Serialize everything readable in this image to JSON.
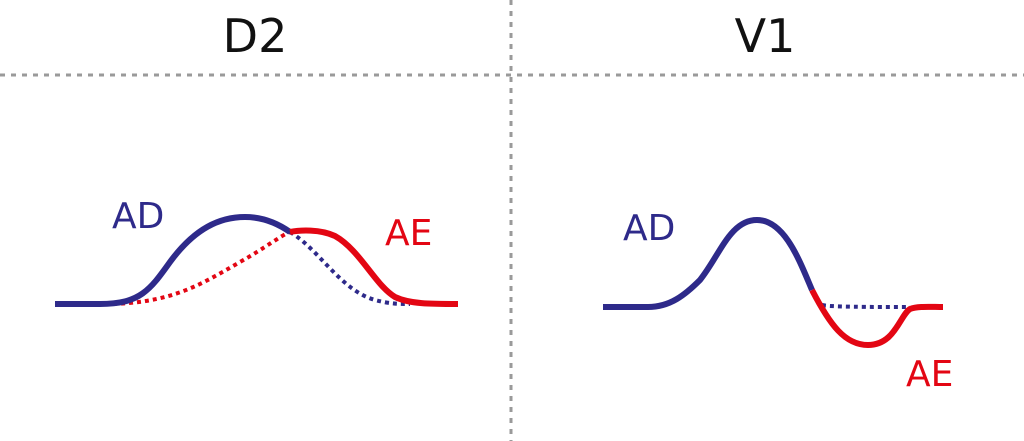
{
  "panels": [
    {
      "title": "D2",
      "label_right_atrium": "AD",
      "label_left_atrium": "AE"
    },
    {
      "title": "V1",
      "label_right_atrium": "AD",
      "label_left_atrium": "AE"
    }
  ],
  "colors": {
    "right_atrium": "#2e2a8a",
    "left_atrium": "#e30613",
    "divider": "#9a9a9a"
  }
}
